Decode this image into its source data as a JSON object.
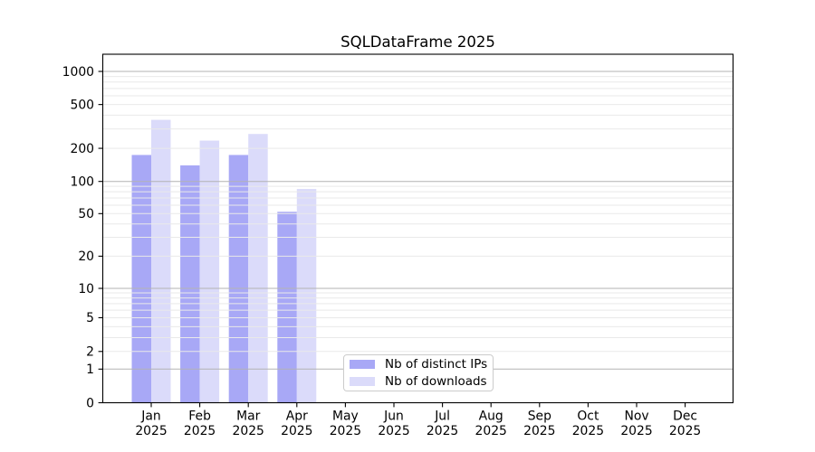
{
  "chart_data": {
    "type": "bar",
    "title": "SQLDataFrame 2025",
    "categories": [
      "Jan 2025",
      "Feb 2025",
      "Mar 2025",
      "Apr 2025",
      "May 2025",
      "Jun 2025",
      "Jul 2025",
      "Aug 2025",
      "Sep 2025",
      "Oct 2025",
      "Nov 2025",
      "Dec 2025"
    ],
    "series": [
      {
        "name": "Nb of distinct IPs",
        "color": "#a8a8f6",
        "values": [
          174,
          140,
          174,
          52,
          0,
          0,
          0,
          0,
          0,
          0,
          0,
          0
        ]
      },
      {
        "name": "Nb of downloads",
        "color": "#dbdbfa",
        "values": [
          363,
          235,
          270,
          85,
          0,
          0,
          0,
          0,
          0,
          0,
          0,
          0
        ]
      }
    ],
    "xlabel": "",
    "ylabel": "",
    "yscale": "symlog",
    "yticks": [
      1000,
      500,
      200,
      100,
      50,
      20,
      10,
      5,
      2,
      1,
      0
    ],
    "ylim": [
      0,
      1370
    ],
    "grid": "horizontal major+minor, drawn above bars",
    "legend_position": "lower center"
  },
  "colors": {
    "bar_distinct_ips": "#a8a8f6",
    "bar_downloads": "#dbdbfa",
    "grid_major": "#b3b3b3",
    "grid_minor": "#e9e9e9",
    "axis": "#000000",
    "text": "#000000",
    "legend_border": "#cccccc",
    "background": "#ffffff"
  }
}
